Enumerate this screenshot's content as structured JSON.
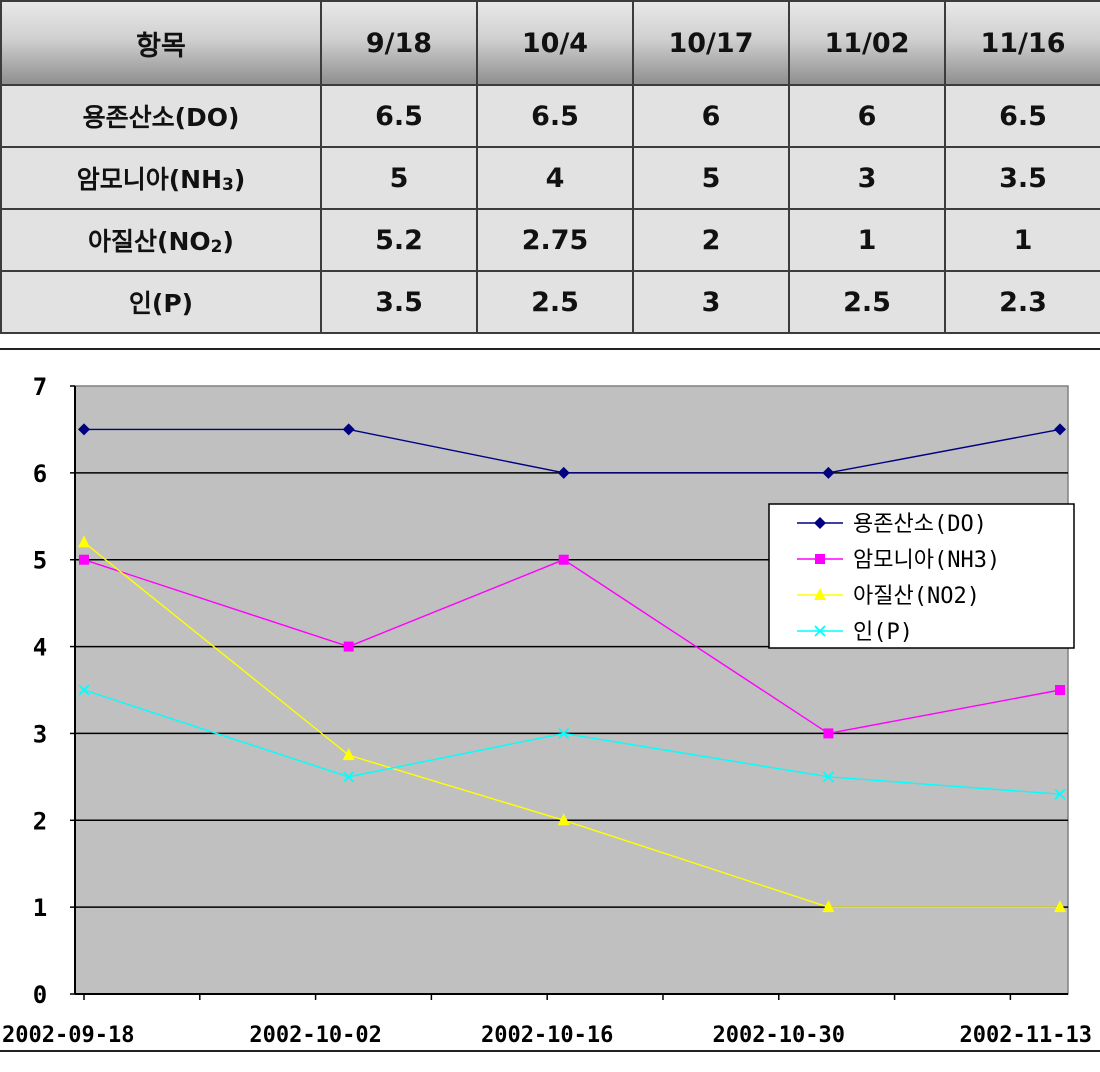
{
  "table": {
    "header": [
      "항목",
      "9/18",
      "10/4",
      "10/17",
      "11/02",
      "11/16"
    ],
    "rows": [
      {
        "label": "용존산소(DO)",
        "label_main": "용존산소(DO)",
        "label_sub": "",
        "label_tail": "",
        "values": [
          "6.5",
          "6.5",
          "6",
          "6",
          "6.5"
        ]
      },
      {
        "label": "암모니아(NH3)",
        "label_main": "암모니아(NH",
        "label_sub": "3",
        "label_tail": ")",
        "values": [
          "5",
          "4",
          "5",
          "3",
          "3.5"
        ]
      },
      {
        "label": "아질산(NO2)",
        "label_main": "아질산(NO",
        "label_sub": "2",
        "label_tail": ")",
        "values": [
          "5.2",
          "2.75",
          "2",
          "1",
          "1"
        ]
      },
      {
        "label": "인(P)",
        "label_main": "인(P)",
        "label_sub": "",
        "label_tail": "",
        "values": [
          "3.5",
          "2.5",
          "3",
          "2.5",
          "2.3"
        ]
      }
    ]
  },
  "chart_data": {
    "type": "line",
    "title": "",
    "xlabel": "",
    "ylabel": "",
    "x": [
      "2002-09-18",
      "2002-10-04",
      "2002-10-17",
      "2002-11-02",
      "2002-11-16"
    ],
    "xlim": [
      "2002-09-18",
      "2002-11-16"
    ],
    "x_ticks": [
      "2002-09-18",
      "2002-10-02",
      "2002-10-16",
      "2002-10-30",
      "2002-11-13"
    ],
    "ylim": [
      0,
      7
    ],
    "y_ticks": [
      0,
      1,
      2,
      3,
      4,
      5,
      6,
      7
    ],
    "grid": "horizontal",
    "plot_background": "#c0c0c0",
    "legend_position": "right",
    "series": [
      {
        "name": "용존산소(DO)",
        "color": "#000080",
        "marker": "diamond",
        "values": [
          6.5,
          6.5,
          6,
          6,
          6.5
        ]
      },
      {
        "name": "암모니아(NH3)",
        "color": "#ff00ff",
        "marker": "square",
        "values": [
          5,
          4,
          5,
          3,
          3.5
        ]
      },
      {
        "name": "아질산(NO2)",
        "color": "#ffff00",
        "marker": "triangle",
        "values": [
          5.2,
          2.75,
          2,
          1,
          1
        ]
      },
      {
        "name": "인(P)",
        "color": "#00ffff",
        "marker": "x",
        "values": [
          3.5,
          2.5,
          3,
          2.5,
          2.3
        ]
      }
    ]
  }
}
